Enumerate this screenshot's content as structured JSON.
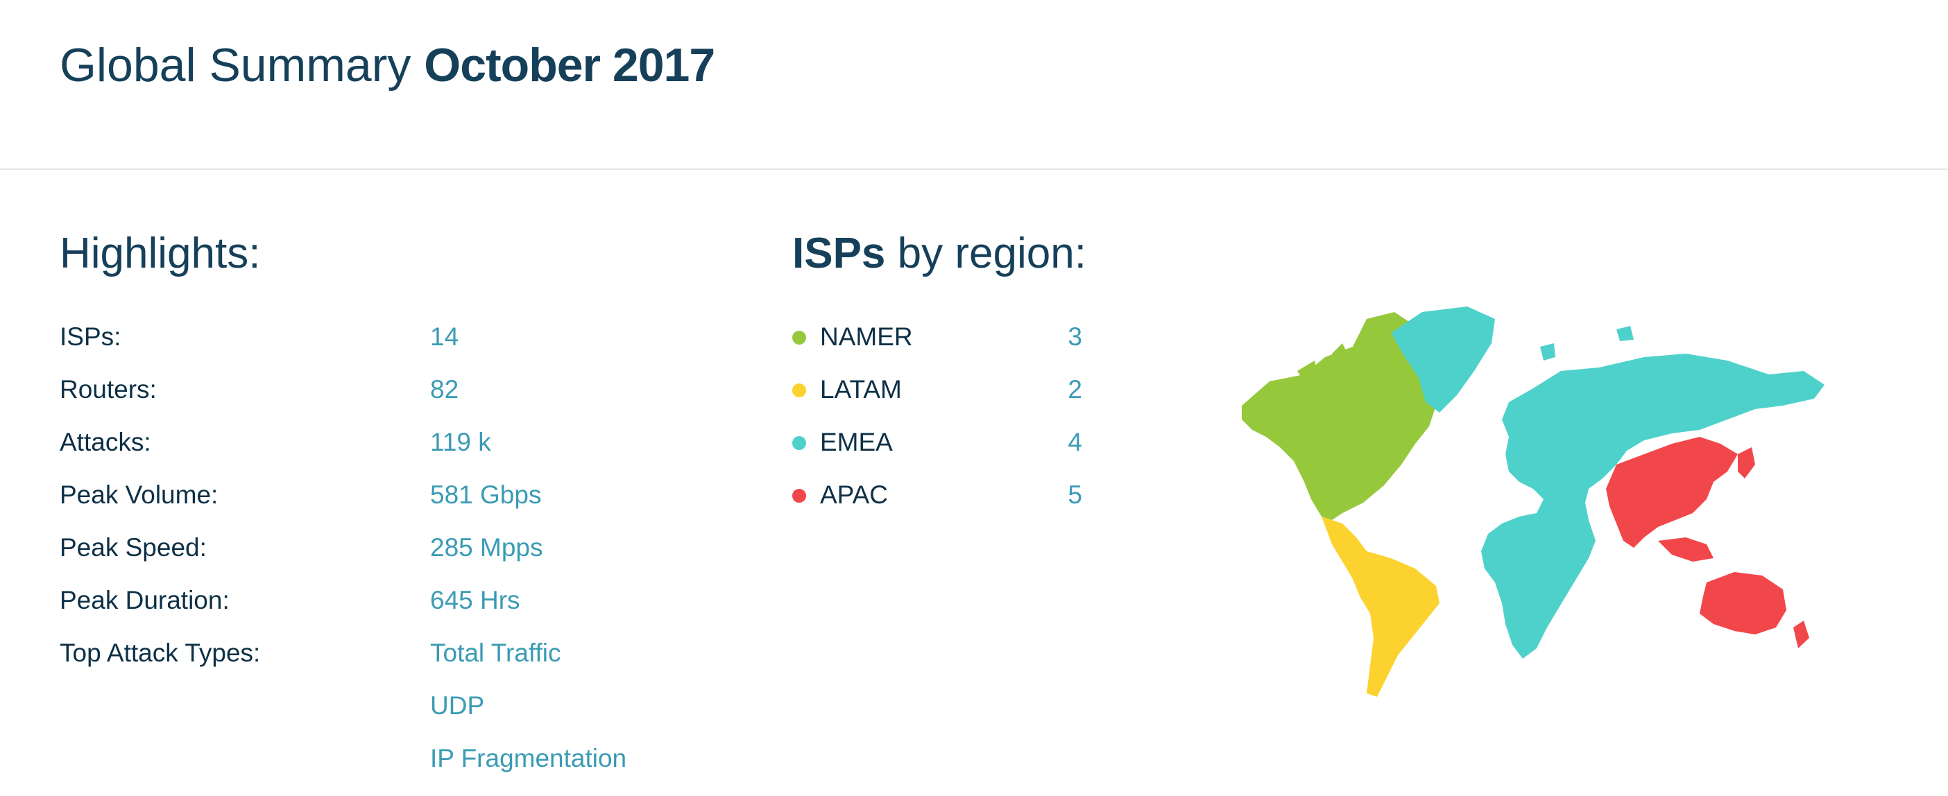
{
  "header": {
    "title_light": "Global Summary",
    "title_strong": "October 2017"
  },
  "highlights": {
    "title": "Highlights:",
    "rows": [
      {
        "label": "ISPs:",
        "value": "14"
      },
      {
        "label": "Routers:",
        "value": "82"
      },
      {
        "label": "Attacks:",
        "value": "119 k"
      },
      {
        "label": "Peak Volume:",
        "value": "581 Gbps"
      },
      {
        "label": "Peak Speed:",
        "value": "285 Mpps"
      },
      {
        "label": "Peak Duration:",
        "value": "645 Hrs"
      },
      {
        "label": "Top Attack Types:",
        "value": "Total Traffic"
      }
    ],
    "extra_attack_types": [
      "UDP",
      "IP Fragmentation"
    ]
  },
  "regions": {
    "title_strong": "ISPs",
    "title_light": "by region:",
    "items": [
      {
        "label": "NAMER",
        "count": "3",
        "color": "#96c83c"
      },
      {
        "label": "LATAM",
        "count": "2",
        "color": "#fcd22e"
      },
      {
        "label": "EMEA",
        "count": "4",
        "color": "#4fd1cb"
      },
      {
        "label": "APAC",
        "count": "5",
        "color": "#f2474a"
      }
    ]
  },
  "map": {
    "icon": "world-map",
    "colors": {
      "namer": "#96c83c",
      "latam": "#fcd22e",
      "emea": "#4fd1cb",
      "apac": "#f2474a"
    }
  }
}
